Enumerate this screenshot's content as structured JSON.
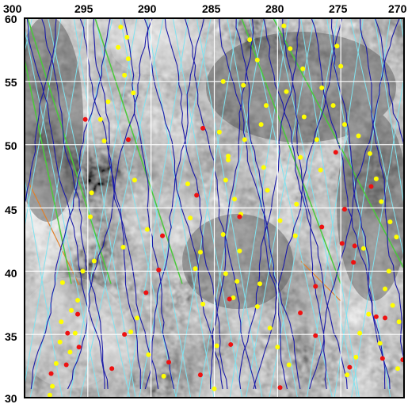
{
  "map": {
    "lon_ticks": [
      "300",
      "295",
      "290",
      "285",
      "280",
      "275",
      "270"
    ],
    "lat_ticks": [
      "60",
      "55",
      "50",
      "45",
      "40",
      "35",
      "30"
    ],
    "lon_range": [
      300,
      270
    ],
    "lat_range": [
      30,
      60
    ],
    "grid": true,
    "colors": {
      "grid": "#ffffff",
      "track_dark_blue": "#1a1aa8",
      "track_cyan": "#7fe3f0",
      "track_green": "#49c93a",
      "track_orange": "#e0802a",
      "point_yellow": "#ffff00",
      "point_red": "#ee1111",
      "frame": "#000000"
    },
    "yellow_points": [
      [
        292.4,
        59.3
      ],
      [
        291.9,
        58.5
      ],
      [
        292.6,
        57.7
      ],
      [
        291.8,
        56.8
      ],
      [
        292.1,
        55.5
      ],
      [
        291.4,
        54.1
      ],
      [
        293.4,
        53.4
      ],
      [
        294.0,
        52.0
      ],
      [
        293.7,
        50.3
      ],
      [
        291.3,
        47.2
      ],
      [
        294.7,
        46.2
      ],
      [
        294.8,
        44.3
      ],
      [
        290.3,
        43.3
      ],
      [
        292.2,
        41.9
      ],
      [
        294.5,
        40.8
      ],
      [
        295.4,
        40.0
      ],
      [
        297.0,
        39.1
      ],
      [
        295.8,
        37.7
      ],
      [
        296.3,
        36.9
      ],
      [
        297.1,
        36.0
      ],
      [
        296.0,
        35.1
      ],
      [
        297.2,
        34.4
      ],
      [
        296.4,
        33.6
      ],
      [
        297.5,
        32.7
      ],
      [
        297.8,
        30.9
      ],
      [
        298.0,
        30.2
      ],
      [
        291.1,
        36.3
      ],
      [
        291.6,
        35.2
      ],
      [
        290.2,
        33.4
      ],
      [
        289.0,
        31.7
      ],
      [
        287.1,
        46.9
      ],
      [
        286.9,
        44.2
      ],
      [
        286.1,
        41.5
      ],
      [
        286.5,
        40.2
      ],
      [
        285.9,
        37.4
      ],
      [
        284.1,
        39.8
      ],
      [
        283.2,
        39.2
      ],
      [
        284.8,
        34.1
      ],
      [
        283.5,
        37.9
      ],
      [
        285.0,
        30.7
      ],
      [
        284.3,
        55.0
      ],
      [
        284.6,
        51.0
      ],
      [
        283.9,
        48.8
      ],
      [
        284.1,
        47.2
      ],
      [
        283.4,
        45.7
      ],
      [
        282.9,
        44.5
      ],
      [
        284.3,
        42.9
      ],
      [
        283.0,
        41.6
      ],
      [
        281.4,
        39.0
      ],
      [
        281.6,
        37.2
      ],
      [
        280.6,
        35.5
      ],
      [
        280.0,
        34.0
      ],
      [
        279.1,
        32.6
      ],
      [
        282.2,
        58.3
      ],
      [
        281.6,
        56.7
      ],
      [
        282.7,
        54.7
      ],
      [
        280.9,
        53.1
      ],
      [
        281.3,
        51.6
      ],
      [
        282.6,
        50.4
      ],
      [
        283.9,
        49.1
      ],
      [
        281.1,
        48.2
      ],
      [
        280.8,
        46.4
      ],
      [
        278.5,
        45.3
      ],
      [
        279.8,
        44.0
      ],
      [
        278.6,
        42.8
      ],
      [
        279.5,
        59.4
      ],
      [
        279.0,
        57.6
      ],
      [
        278.0,
        56.0
      ],
      [
        279.3,
        54.2
      ],
      [
        277.9,
        52.2
      ],
      [
        276.9,
        50.4
      ],
      [
        278.2,
        49.0
      ],
      [
        276.6,
        48.0
      ],
      [
        275.3,
        57.8
      ],
      [
        275.0,
        56.2
      ],
      [
        276.5,
        54.5
      ],
      [
        275.6,
        53.1
      ],
      [
        274.7,
        51.6
      ],
      [
        273.6,
        50.7
      ],
      [
        272.7,
        49.3
      ],
      [
        272.2,
        47.3
      ],
      [
        271.8,
        45.5
      ],
      [
        271.1,
        43.9
      ],
      [
        270.6,
        42.7
      ],
      [
        273.2,
        41.8
      ],
      [
        271.5,
        38.6
      ],
      [
        270.9,
        37.3
      ],
      [
        272.8,
        36.6
      ],
      [
        273.5,
        35.1
      ],
      [
        271.9,
        34.3
      ],
      [
        273.8,
        33.2
      ],
      [
        270.5,
        32.3
      ],
      [
        274.5,
        31.8
      ],
      [
        271.2,
        40.0
      ],
      [
        270.4,
        36.0
      ]
    ],
    "red_points": [
      [
        295.2,
        52.0
      ],
      [
        291.8,
        50.4
      ],
      [
        285.9,
        51.3
      ],
      [
        286.4,
        46.0
      ],
      [
        289.1,
        42.8
      ],
      [
        289.4,
        40.1
      ],
      [
        290.4,
        38.3
      ],
      [
        283.0,
        44.3
      ],
      [
        283.8,
        37.8
      ],
      [
        283.7,
        34.2
      ],
      [
        279.8,
        30.8
      ],
      [
        278.2,
        36.7
      ],
      [
        277.0,
        38.8
      ],
      [
        277.0,
        34.9
      ],
      [
        276.5,
        43.5
      ],
      [
        274.9,
        42.2
      ],
      [
        274.7,
        44.9
      ],
      [
        273.9,
        42.0
      ],
      [
        272.6,
        46.7
      ],
      [
        275.4,
        49.4
      ],
      [
        271.7,
        33.1
      ],
      [
        272.2,
        36.4
      ],
      [
        274.3,
        32.4
      ],
      [
        270.1,
        33.0
      ],
      [
        274.0,
        40.7
      ],
      [
        295.8,
        36.6
      ],
      [
        296.6,
        35.1
      ],
      [
        295.7,
        34.0
      ],
      [
        297.9,
        31.9
      ],
      [
        296.7,
        32.6
      ],
      [
        293.1,
        32.3
      ],
      [
        292.1,
        35.0
      ],
      [
        286.1,
        31.8
      ],
      [
        271.5,
        36.3
      ],
      [
        288.6,
        32.8
      ]
    ]
  }
}
